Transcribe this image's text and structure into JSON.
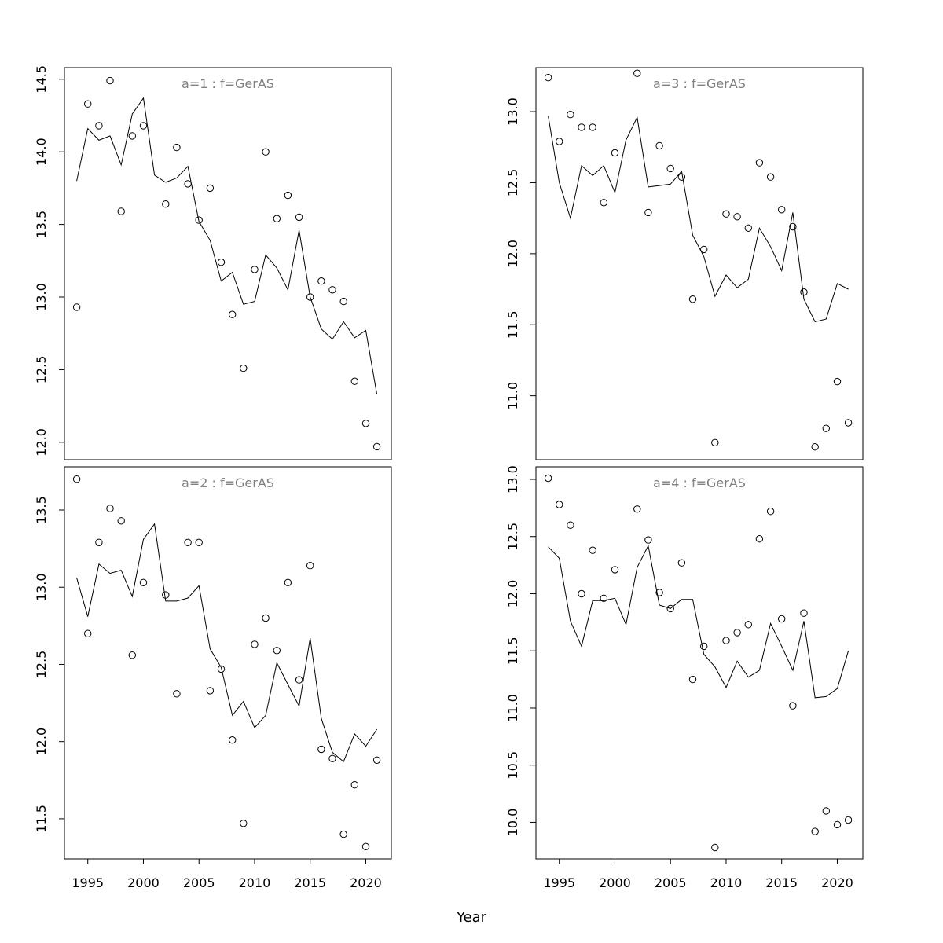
{
  "xlabel": "Year",
  "chart_data": [
    {
      "type": "scatter",
      "title": "a=1  :  f=GerAS",
      "x": [
        1994,
        1995,
        1996,
        1997,
        1998,
        1999,
        2000,
        2001,
        2002,
        2003,
        2004,
        2005,
        2006,
        2007,
        2008,
        2009,
        2010,
        2011,
        2012,
        2013,
        2014,
        2015,
        2016,
        2017,
        2018,
        2019,
        2020,
        2021
      ],
      "observed": [
        12.93,
        14.33,
        14.18,
        14.49,
        13.59,
        14.11,
        14.18,
        null,
        13.64,
        14.03,
        13.78,
        13.53,
        13.75,
        13.24,
        12.88,
        12.51,
        13.19,
        14.0,
        13.54,
        13.7,
        13.55,
        13.0,
        13.11,
        13.05,
        12.97,
        12.42,
        12.13,
        11.97
      ],
      "fitted": [
        13.8,
        14.16,
        14.08,
        14.11,
        13.91,
        14.26,
        14.37,
        13.84,
        13.79,
        13.82,
        13.9,
        13.52,
        13.39,
        13.11,
        13.17,
        12.95,
        12.97,
        13.29,
        13.2,
        13.05,
        13.46,
        13.0,
        12.78,
        12.71,
        12.83,
        12.72,
        12.77,
        12.33
      ],
      "xlim": [
        1992.9,
        2022.3
      ],
      "ylim": [
        11.88,
        14.58
      ],
      "yticks": [
        12.0,
        12.5,
        13.0,
        13.5,
        14.0,
        14.5
      ],
      "ytick_labels": [
        "12.0",
        "12.5",
        "13.0",
        "13.5",
        "14.0",
        "14.5"
      ]
    },
    {
      "type": "scatter",
      "title": "a=3  :  f=GerAS",
      "x": [
        1994,
        1995,
        1996,
        1997,
        1998,
        1999,
        2000,
        2001,
        2002,
        2003,
        2004,
        2005,
        2006,
        2007,
        2008,
        2009,
        2010,
        2011,
        2012,
        2013,
        2014,
        2015,
        2016,
        2017,
        2018,
        2019,
        2020,
        2021
      ],
      "observed": [
        13.24,
        12.79,
        12.98,
        12.89,
        12.89,
        12.36,
        12.71,
        null,
        13.27,
        12.29,
        12.76,
        12.6,
        12.54,
        11.68,
        12.03,
        10.67,
        12.28,
        12.26,
        12.18,
        12.64,
        12.54,
        12.31,
        12.19,
        11.73,
        10.64,
        10.77,
        11.1,
        10.81
      ],
      "fitted": [
        12.97,
        12.5,
        12.25,
        12.62,
        12.55,
        12.62,
        12.43,
        12.8,
        12.96,
        12.47,
        12.48,
        12.49,
        12.58,
        12.13,
        11.98,
        11.7,
        11.85,
        11.76,
        11.82,
        12.18,
        12.05,
        11.88,
        12.29,
        11.68,
        11.52,
        11.54,
        11.79,
        11.75
      ],
      "xlim": [
        1992.9,
        2022.3
      ],
      "ylim": [
        10.55,
        13.31
      ],
      "yticks": [
        11.0,
        11.5,
        12.0,
        12.5,
        13.0
      ],
      "ytick_labels": [
        "11.0",
        "11.5",
        "12.0",
        "12.5",
        "13.0"
      ]
    },
    {
      "type": "scatter",
      "title": "a=2  :  f=GerAS",
      "x": [
        1994,
        1995,
        1996,
        1997,
        1998,
        1999,
        2000,
        2001,
        2002,
        2003,
        2004,
        2005,
        2006,
        2007,
        2008,
        2009,
        2010,
        2011,
        2012,
        2013,
        2014,
        2015,
        2016,
        2017,
        2018,
        2019,
        2020,
        2021
      ],
      "observed": [
        13.7,
        12.7,
        13.29,
        13.51,
        13.43,
        12.56,
        13.03,
        null,
        12.95,
        12.31,
        13.29,
        13.29,
        12.33,
        12.47,
        12.01,
        11.47,
        12.63,
        12.8,
        12.59,
        13.03,
        12.4,
        13.14,
        11.95,
        11.89,
        11.4,
        11.72,
        11.32,
        11.88
      ],
      "fitted": [
        13.06,
        12.81,
        13.15,
        13.09,
        13.11,
        12.94,
        13.31,
        13.41,
        12.91,
        12.91,
        12.93,
        13.01,
        12.6,
        12.48,
        12.17,
        12.26,
        12.09,
        12.17,
        12.51,
        12.37,
        12.23,
        12.67,
        12.15,
        11.93,
        11.87,
        12.05,
        11.97,
        12.08
      ],
      "xlim": [
        1992.9,
        2022.3
      ],
      "ylim": [
        11.24,
        13.78
      ],
      "yticks": [
        11.5,
        12.0,
        12.5,
        13.0,
        13.5
      ],
      "ytick_labels": [
        "11.5",
        "12.0",
        "12.5",
        "13.0",
        "13.5"
      ]
    },
    {
      "type": "scatter",
      "title": "a=4  :  f=GerAS",
      "x": [
        1994,
        1995,
        1996,
        1997,
        1998,
        1999,
        2000,
        2001,
        2002,
        2003,
        2004,
        2005,
        2006,
        2007,
        2008,
        2009,
        2010,
        2011,
        2012,
        2013,
        2014,
        2015,
        2016,
        2017,
        2018,
        2019,
        2020,
        2021
      ],
      "observed": [
        13.01,
        12.78,
        12.6,
        12.0,
        12.38,
        11.96,
        12.21,
        null,
        12.74,
        12.47,
        12.01,
        11.87,
        12.27,
        11.25,
        11.54,
        9.78,
        11.59,
        11.66,
        11.73,
        12.48,
        12.72,
        11.78,
        11.02,
        11.83,
        9.92,
        10.1,
        9.98,
        10.02
      ],
      "fitted": [
        12.41,
        12.31,
        11.76,
        11.54,
        11.94,
        11.94,
        11.96,
        11.73,
        12.23,
        12.42,
        11.9,
        11.87,
        11.95,
        11.95,
        11.47,
        11.36,
        11.18,
        11.41,
        11.27,
        11.33,
        11.74,
        11.54,
        11.33,
        11.76,
        11.09,
        11.1,
        11.17,
        11.5
      ],
      "xlim": [
        1992.9,
        2022.3
      ],
      "ylim": [
        9.68,
        13.11
      ],
      "yticks": [
        10.0,
        10.5,
        11.0,
        11.5,
        12.0,
        12.5,
        13.0
      ],
      "ytick_labels": [
        "10.0",
        "10.5",
        "11.0",
        "11.5",
        "12.0",
        "12.5",
        "13.0"
      ]
    }
  ],
  "xticks": [
    1995,
    2000,
    2005,
    2010,
    2015,
    2020
  ],
  "xtick_labels": [
    "1995",
    "2000",
    "2005",
    "2010",
    "2015",
    "2020"
  ]
}
